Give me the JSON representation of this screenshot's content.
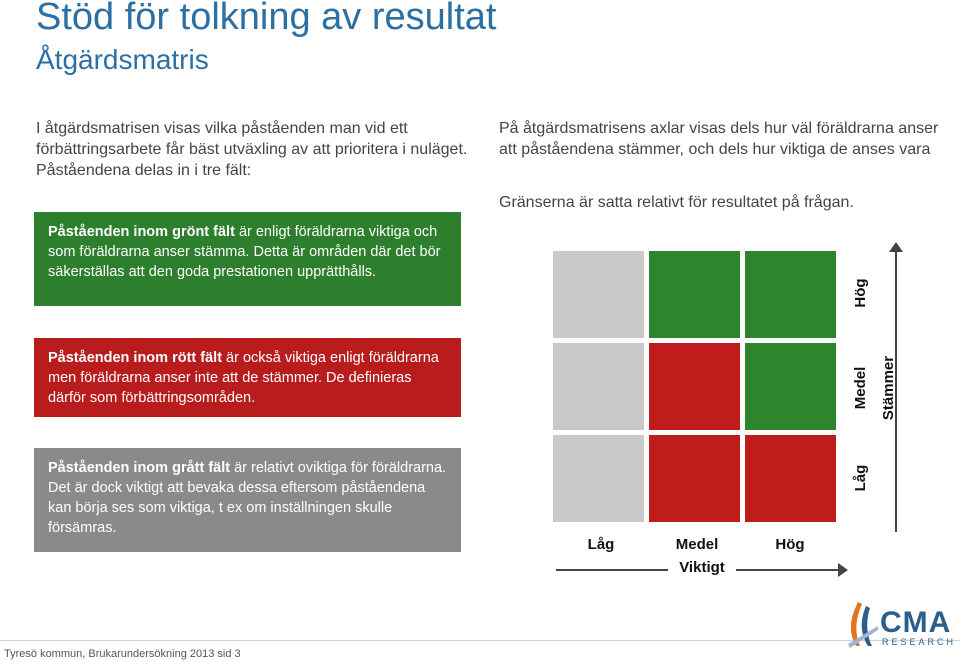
{
  "title": "Stöd för tolkning av resultat",
  "subtitle": "Åtgärdsmatris",
  "intro": "I åtgärdsmatrisen visas vilka påståenden man vid ett förbättringsarbete får bäst utväxling av att prioritera i nuläget. Påståendena delas in i tre fält:",
  "right_intro": "På åtgärdsmatrisens axlar visas dels hur väl föräldrarna anser att påståendena stämmer, och dels hur viktiga de anses vara",
  "right_note": "Gränserna är satta relativt för resultatet på frågan.",
  "green_box": {
    "bold": "Påståenden inom grönt fält",
    "rest": " är enligt föräldrarna viktiga och som föräldrarna anser stämma. Detta är områden där det bör säkerställas att den goda prestationen upprätthålls.",
    "color": "#2d7f2d"
  },
  "red_box": {
    "bold": "Påståenden inom rött fält",
    "rest": " är också viktiga enligt föräldrarna men föräldrarna anser inte att de stämmer. De definieras därför som förbättringsområden.",
    "color": "#b81c1c"
  },
  "gray_box": {
    "bold": "Påståenden inom grått fält",
    "rest": " är relativt oviktiga för föräldrarna. Det är dock viktigt att bevaka dessa eftersom påståendena kan börja ses som viktiga, t ex om inställningen skulle försämras.",
    "color": "#8a8a8a"
  },
  "matrix": {
    "x_axis_title": "Viktigt",
    "y_axis_title": "Stämmer",
    "x_labels": [
      "Låg",
      "Medel",
      "Hög"
    ],
    "y_labels": [
      "Hög",
      "Medel",
      "Låg"
    ],
    "cells": [
      [
        "gray",
        "green",
        "green"
      ],
      [
        "gray",
        "red",
        "green"
      ],
      [
        "gray",
        "red",
        "red"
      ]
    ]
  },
  "footer": "Tyresö kommun, Brukarundersökning 2013 sid 3",
  "logo": {
    "name": "CMA",
    "sub": "RESEARCH",
    "icon": "cma-logo-icon"
  }
}
